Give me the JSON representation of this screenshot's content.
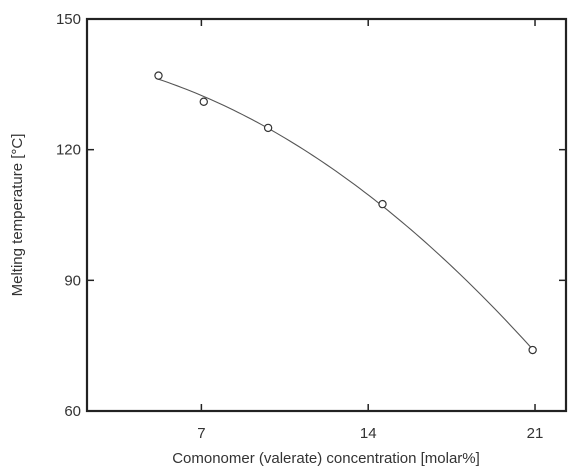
{
  "chart_data": {
    "type": "scatter",
    "title": "",
    "xlabel": "Comonomer (valerate) concentration [molar%]",
    "ylabel": "Melting temperature [°C]",
    "xlim": [
      2.2,
      22.3
    ],
    "ylim": [
      60,
      150
    ],
    "xticks": [
      7,
      14,
      21
    ],
    "xtick_labels": [
      "7",
      "14",
      "21"
    ],
    "yticks": [
      60,
      90,
      120,
      150
    ],
    "ytick_labels": [
      "60",
      "90",
      "120",
      "150"
    ],
    "grid": false,
    "legend": "none",
    "series": [
      {
        "points": [
          {
            "x": 5.2,
            "y": 137
          },
          {
            "x": 7.1,
            "y": 131
          },
          {
            "x": 9.8,
            "y": 125
          },
          {
            "x": 14.6,
            "y": 107.5
          },
          {
            "x": 20.9,
            "y": 74
          }
        ],
        "trend_line": "smooth fitted curve",
        "marker": "open-circle",
        "color": "#555555"
      }
    ]
  }
}
